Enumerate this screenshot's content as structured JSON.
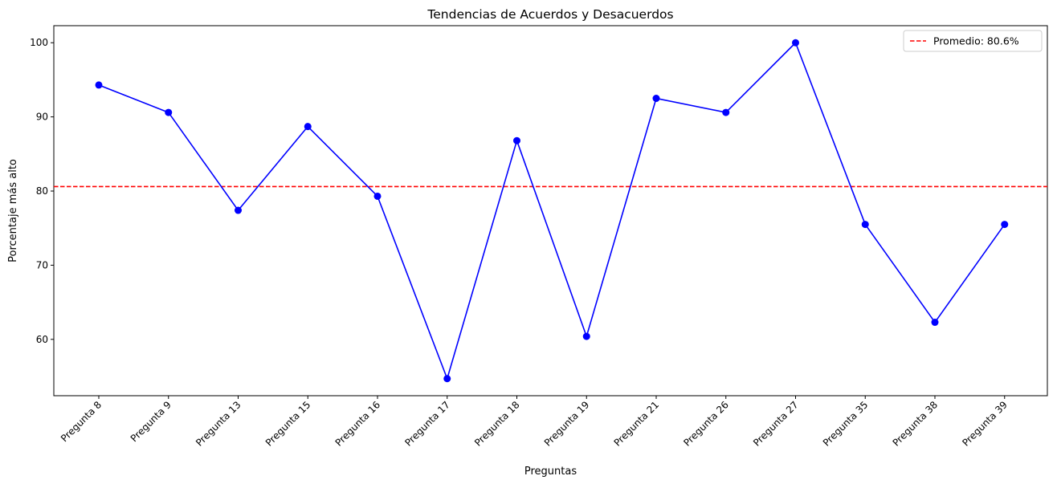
{
  "chart_data": {
    "type": "line",
    "title": "Tendencias de Acuerdos y Desacuerdos",
    "xlabel": "Preguntas",
    "ylabel": "Porcentaje más alto",
    "categories": [
      "Pregunta 8",
      "Pregunta 9",
      "Pregunta 13",
      "Pregunta 15",
      "Pregunta 16",
      "Pregunta 17",
      "Pregunta 18",
      "Pregunta 19",
      "Pregunta 21",
      "Pregunta 26",
      "Pregunta 27",
      "Pregunta 35",
      "Pregunta 38",
      "Pregunta 39"
    ],
    "series": [
      {
        "color": "#0000ff",
        "marker": "circle",
        "values": [
          94.3,
          90.6,
          77.4,
          88.7,
          79.3,
          54.7,
          86.8,
          60.4,
          92.5,
          90.6,
          100.0,
          75.5,
          62.3,
          75.5
        ]
      }
    ],
    "reference_line": {
      "value": 80.6,
      "label": "Promedio: 80.6%",
      "color": "#ff0000",
      "style": "dashed"
    },
    "ylim": [
      52.4,
      102.3
    ],
    "yticks": [
      60,
      70,
      80,
      90,
      100
    ],
    "grid": false,
    "legend_position": "top-right"
  }
}
